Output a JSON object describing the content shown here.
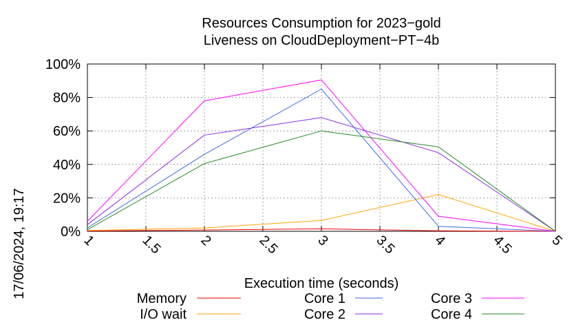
{
  "chart_data": {
    "type": "line",
    "title_line1": "Resources Consumption for 2023−gold",
    "title_line2": "Liveness on CloudDeployment−PT−4b",
    "xlabel": "Execution time (seconds)",
    "ylabel": "",
    "timestamp": "17/06/2024, 19:17",
    "xlim": [
      1,
      5
    ],
    "ylim": [
      0,
      100
    ],
    "x_ticks": [
      "1",
      "1.5",
      "2",
      "2.5",
      "3",
      "3.5",
      "4",
      "4.5",
      "5"
    ],
    "y_ticks": [
      "0%",
      "20%",
      "40%",
      "60%",
      "80%",
      "100%"
    ],
    "grid": true,
    "legend_position": "bottom",
    "x": [
      1,
      2,
      3,
      4,
      5
    ],
    "series": [
      {
        "name": "Memory",
        "color": "#ff0000",
        "values": [
          0.2,
          0.8,
          1.5,
          0.3,
          0
        ]
      },
      {
        "name": "I/O wait",
        "color": "#ffa500",
        "values": [
          0.5,
          2,
          6.5,
          22,
          0
        ]
      },
      {
        "name": "Core 1",
        "color": "#4169e1",
        "values": [
          2,
          46,
          85,
          3,
          0
        ]
      },
      {
        "name": "Core 2",
        "color": "#8a2be2",
        "values": [
          4,
          57.5,
          68,
          47,
          0
        ]
      },
      {
        "name": "Core 3",
        "color": "#ff00ff",
        "values": [
          6,
          78,
          90.5,
          9,
          0
        ]
      },
      {
        "name": "Core 4",
        "color": "#228b22",
        "values": [
          1,
          40.5,
          60,
          50.5,
          0
        ]
      }
    ]
  }
}
